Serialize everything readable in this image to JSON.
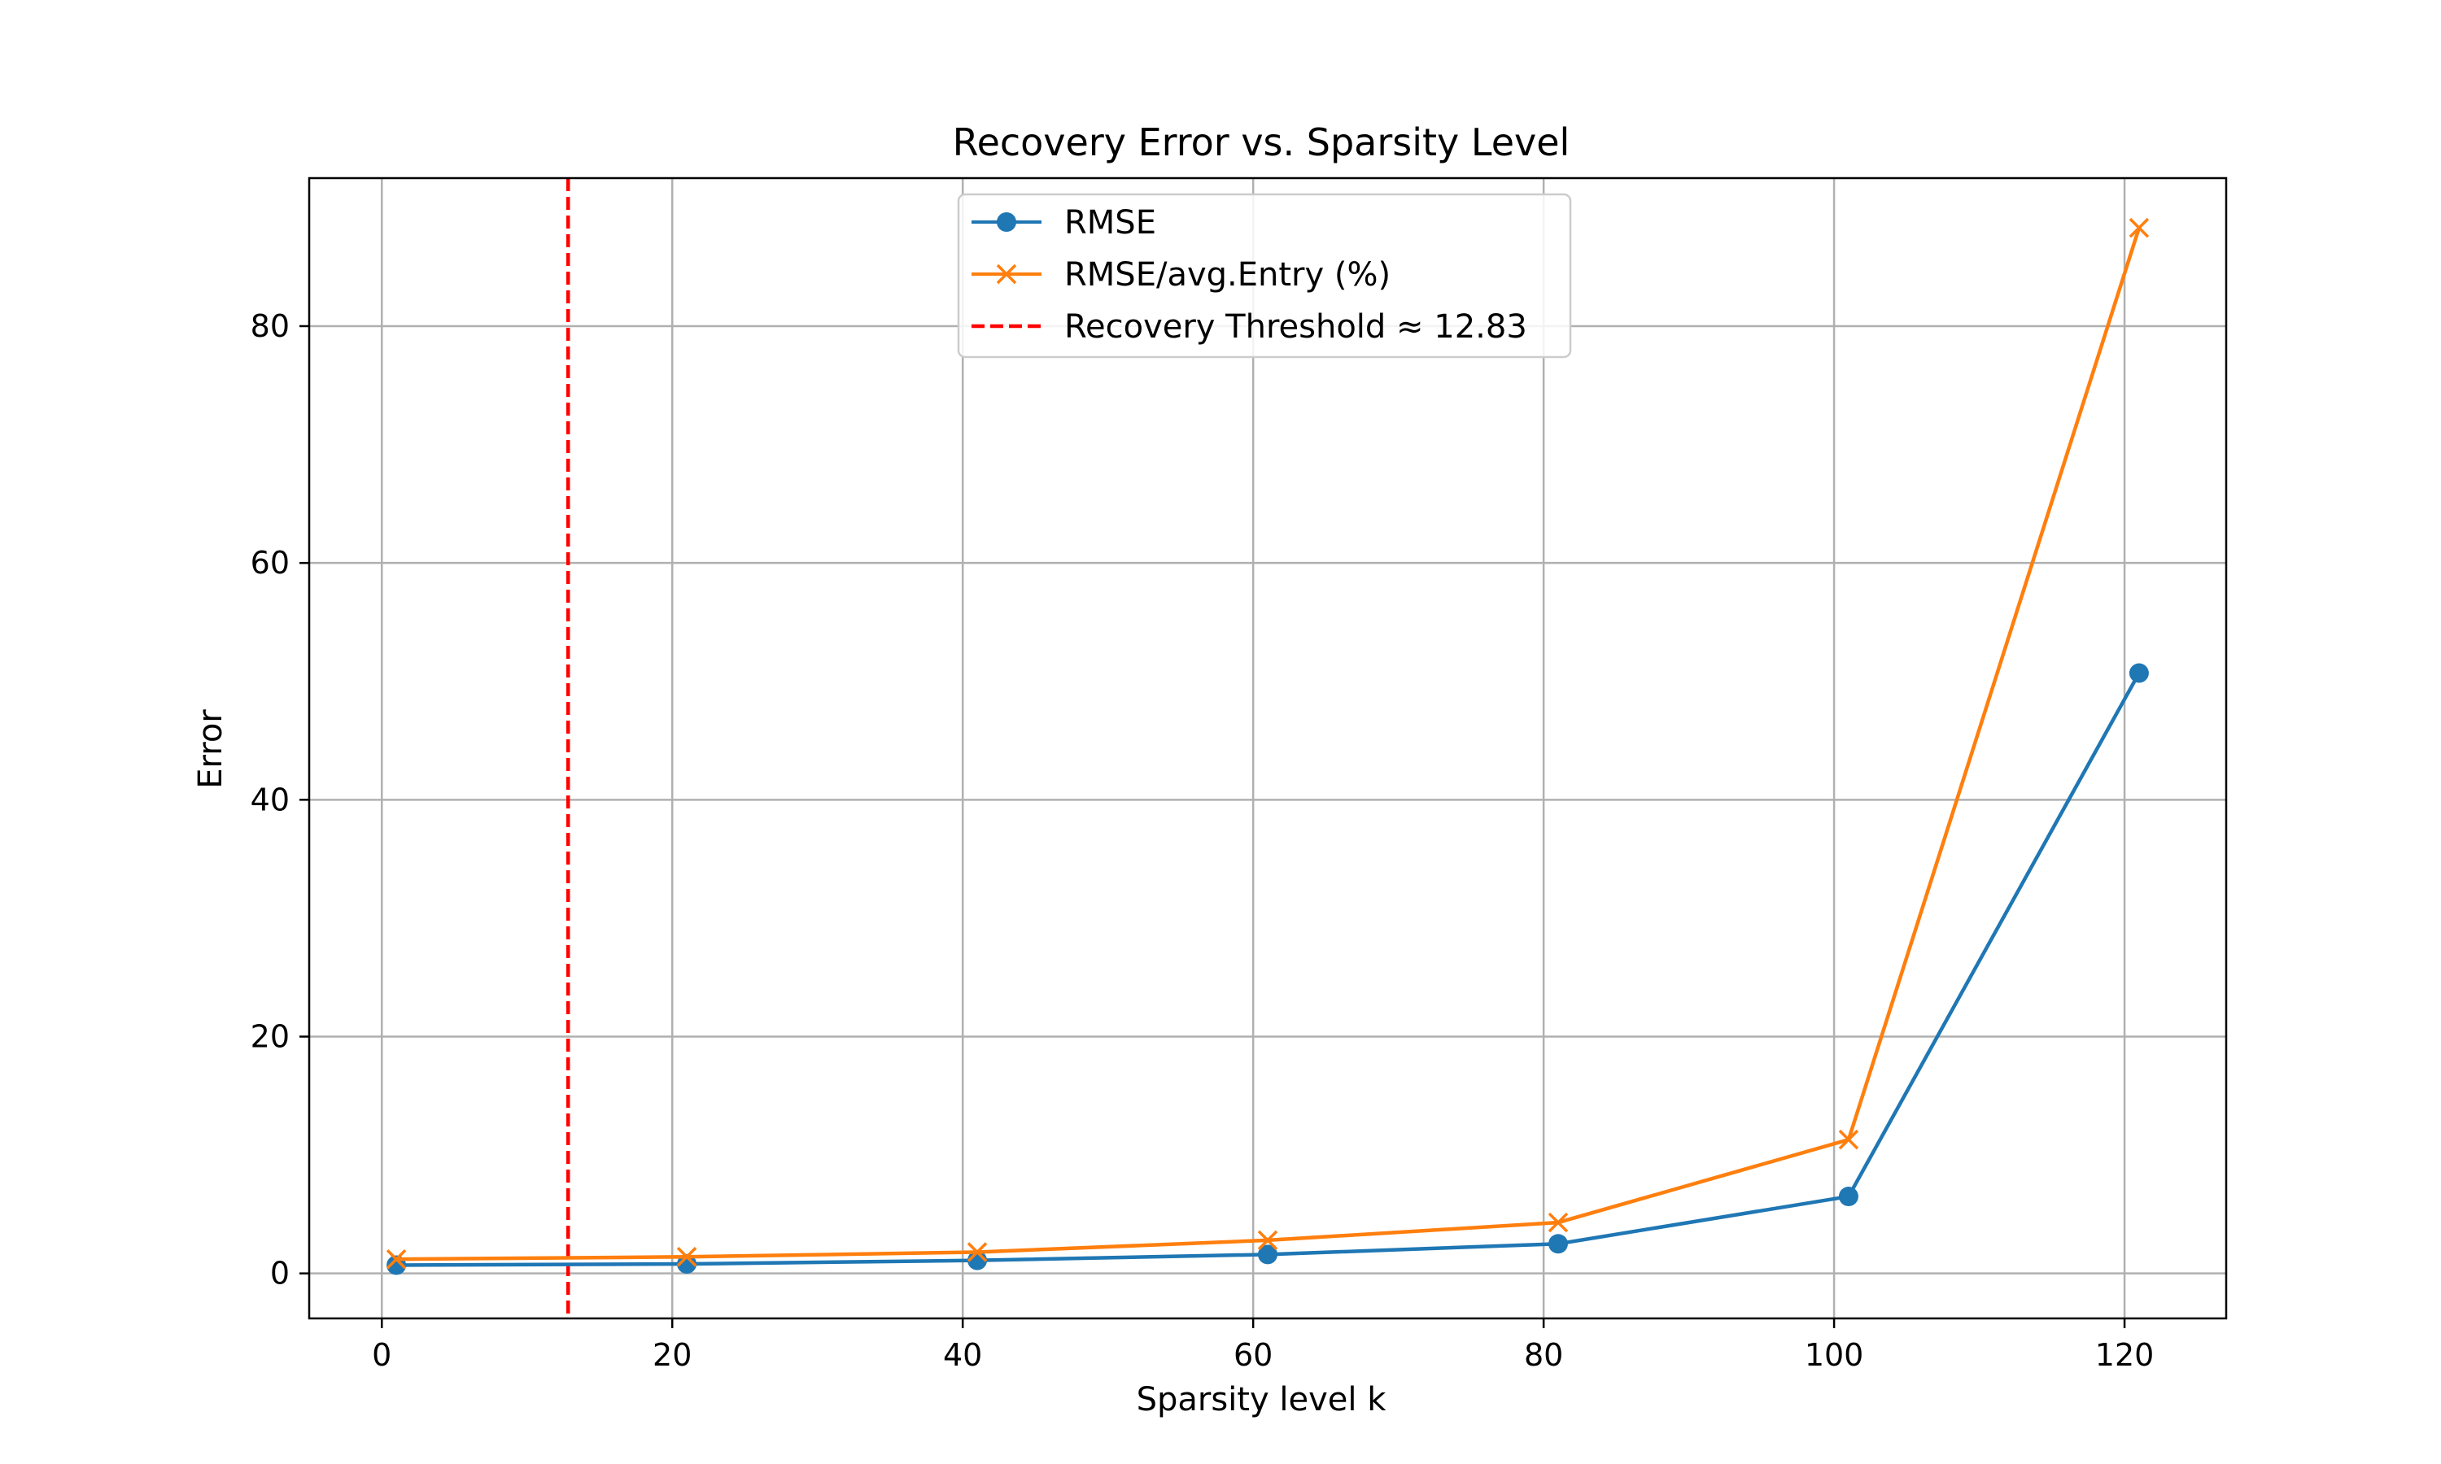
{
  "chart_data": {
    "type": "line",
    "title": "Recovery Error vs. Sparsity Level",
    "xlabel": "Sparsity level k",
    "ylabel": "Error",
    "xlim": [
      -5,
      127
    ],
    "ylim": [
      -3.8,
      92.5
    ],
    "xticks": [
      0,
      20,
      40,
      60,
      80,
      100,
      120
    ],
    "yticks": [
      0,
      20,
      40,
      60,
      80
    ],
    "grid": true,
    "legend_position": "top-center",
    "x": [
      1,
      21,
      41,
      61,
      81,
      101,
      121
    ],
    "series": [
      {
        "name": "RMSE",
        "values": [
          0.7,
          0.8,
          1.1,
          1.6,
          2.5,
          6.5,
          50.7
        ],
        "color": "#1f77b4",
        "marker": "circle"
      },
      {
        "name": "RMSE/avg.Entry (%)",
        "values": [
          1.2,
          1.4,
          1.8,
          2.8,
          4.3,
          11.3,
          88.3
        ],
        "color": "#ff7f0e",
        "marker": "x"
      }
    ],
    "threshold": {
      "label": "Recovery Threshold ≈ 12.83",
      "x": 12.83,
      "color": "#ff0000",
      "style": "dashed"
    }
  }
}
